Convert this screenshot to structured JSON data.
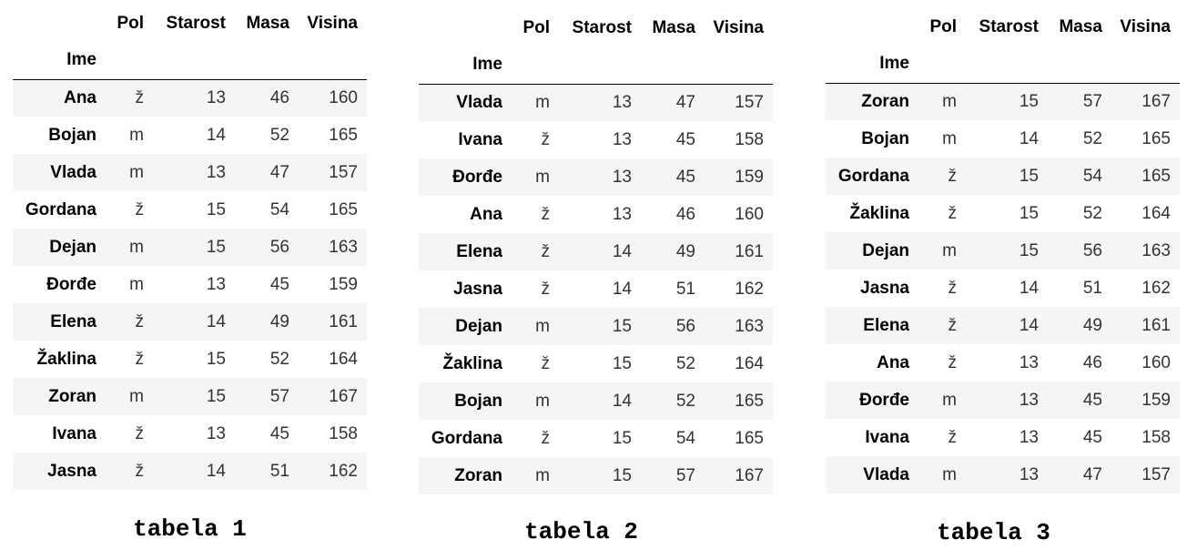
{
  "tables": [
    {
      "caption": "tabela 1",
      "index_name": "Ime",
      "columns": [
        "Pol",
        "Starost",
        "Masa",
        "Visina"
      ],
      "rows": [
        [
          "Ana",
          "ž",
          "13",
          "46",
          "160"
        ],
        [
          "Bojan",
          "m",
          "14",
          "52",
          "165"
        ],
        [
          "Vlada",
          "m",
          "13",
          "47",
          "157"
        ],
        [
          "Gordana",
          "ž",
          "15",
          "54",
          "165"
        ],
        [
          "Dejan",
          "m",
          "15",
          "56",
          "163"
        ],
        [
          "Đorđe",
          "m",
          "13",
          "45",
          "159"
        ],
        [
          "Elena",
          "ž",
          "14",
          "49",
          "161"
        ],
        [
          "Žaklina",
          "ž",
          "15",
          "52",
          "164"
        ],
        [
          "Zoran",
          "m",
          "15",
          "57",
          "167"
        ],
        [
          "Ivana",
          "ž",
          "13",
          "45",
          "158"
        ],
        [
          "Jasna",
          "ž",
          "14",
          "51",
          "162"
        ]
      ]
    },
    {
      "caption": "tabela 2",
      "index_name": "Ime",
      "columns": [
        "Pol",
        "Starost",
        "Masa",
        "Visina"
      ],
      "rows": [
        [
          "Vlada",
          "m",
          "13",
          "47",
          "157"
        ],
        [
          "Ivana",
          "ž",
          "13",
          "45",
          "158"
        ],
        [
          "Đorđe",
          "m",
          "13",
          "45",
          "159"
        ],
        [
          "Ana",
          "ž",
          "13",
          "46",
          "160"
        ],
        [
          "Elena",
          "ž",
          "14",
          "49",
          "161"
        ],
        [
          "Jasna",
          "ž",
          "14",
          "51",
          "162"
        ],
        [
          "Dejan",
          "m",
          "15",
          "56",
          "163"
        ],
        [
          "Žaklina",
          "ž",
          "15",
          "52",
          "164"
        ],
        [
          "Bojan",
          "m",
          "14",
          "52",
          "165"
        ],
        [
          "Gordana",
          "ž",
          "15",
          "54",
          "165"
        ],
        [
          "Zoran",
          "m",
          "15",
          "57",
          "167"
        ]
      ]
    },
    {
      "caption": "tabela 3",
      "index_name": "Ime",
      "columns": [
        "Pol",
        "Starost",
        "Masa",
        "Visina"
      ],
      "rows": [
        [
          "Zoran",
          "m",
          "15",
          "57",
          "167"
        ],
        [
          "Bojan",
          "m",
          "14",
          "52",
          "165"
        ],
        [
          "Gordana",
          "ž",
          "15",
          "54",
          "165"
        ],
        [
          "Žaklina",
          "ž",
          "15",
          "52",
          "164"
        ],
        [
          "Dejan",
          "m",
          "15",
          "56",
          "163"
        ],
        [
          "Jasna",
          "ž",
          "14",
          "51",
          "162"
        ],
        [
          "Elena",
          "ž",
          "14",
          "49",
          "161"
        ],
        [
          "Ana",
          "ž",
          "13",
          "46",
          "160"
        ],
        [
          "Đorđe",
          "m",
          "13",
          "45",
          "159"
        ],
        [
          "Ivana",
          "ž",
          "13",
          "45",
          "158"
        ],
        [
          "Vlada",
          "m",
          "13",
          "47",
          "157"
        ]
      ]
    }
  ]
}
